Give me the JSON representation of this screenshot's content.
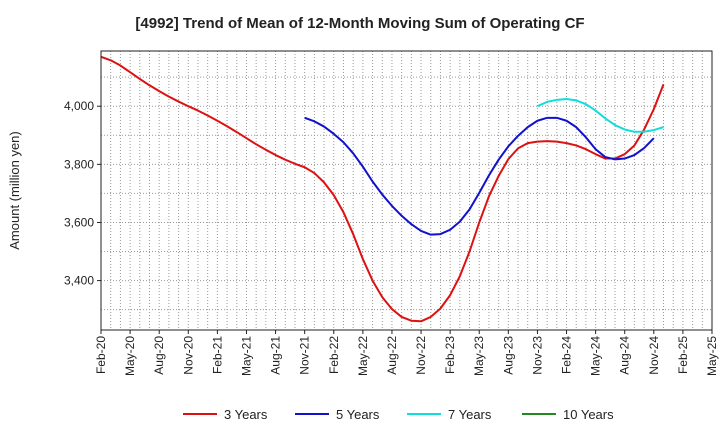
{
  "chart_data": {
    "type": "line",
    "title": "[4992]  Trend of Mean of 12-Month Moving Sum of Operating CF",
    "xlabel": "",
    "ylabel": "Amount (million yen)",
    "ylim": [
      3230,
      4190
    ],
    "yticks": [
      3400,
      3600,
      3800,
      4000
    ],
    "ytick_labels": [
      "3,400",
      "3,600",
      "3,800",
      "4,000"
    ],
    "x_tick_labels": [
      "Feb-20",
      "May-20",
      "Aug-20",
      "Nov-20",
      "Feb-21",
      "May-21",
      "Aug-21",
      "Nov-21",
      "Feb-22",
      "May-22",
      "Aug-22",
      "Nov-22",
      "Feb-23",
      "May-23",
      "Aug-23",
      "Nov-23",
      "Feb-24",
      "May-24",
      "Aug-24",
      "Nov-24",
      "Feb-25",
      "May-25"
    ],
    "x_month_range": [
      0,
      63
    ],
    "grid": true,
    "legend_position": "bottom",
    "series": [
      {
        "name": "3 Years",
        "color": "#dd1111",
        "start_month": 0,
        "values": [
          4170,
          4158,
          4140,
          4117,
          4094,
          4072,
          4052,
          4033,
          4016,
          4000,
          3985,
          3968,
          3950,
          3931,
          3911,
          3890,
          3869,
          3850,
          3832,
          3816,
          3802,
          3790,
          3770,
          3738,
          3694,
          3635,
          3560,
          3474,
          3400,
          3343,
          3302,
          3275,
          3262,
          3260,
          3275,
          3304,
          3350,
          3415,
          3500,
          3600,
          3690,
          3760,
          3818,
          3855,
          3873,
          3878,
          3880,
          3878,
          3873,
          3865,
          3852,
          3835,
          3820,
          3820,
          3835,
          3865,
          3920,
          3990,
          4075
        ]
      },
      {
        "name": "5 Years",
        "color": "#1111cc",
        "start_month": 21,
        "values": [
          3960,
          3948,
          3930,
          3905,
          3876,
          3838,
          3792,
          3741,
          3696,
          3657,
          3623,
          3594,
          3571,
          3558,
          3560,
          3575,
          3603,
          3645,
          3702,
          3762,
          3816,
          3862,
          3898,
          3928,
          3950,
          3960,
          3960,
          3950,
          3928,
          3893,
          3852,
          3825,
          3817,
          3820,
          3832,
          3856,
          3890
        ]
      },
      {
        "name": "7 Years",
        "color": "#11dddd",
        "start_month": 45,
        "values": [
          4000,
          4015,
          4022,
          4025,
          4020,
          4007,
          3985,
          3958,
          3935,
          3920,
          3912,
          3912,
          3918,
          3928
        ]
      },
      {
        "name": "10 Years",
        "color": "#228822",
        "start_month": 0,
        "values": []
      }
    ]
  }
}
